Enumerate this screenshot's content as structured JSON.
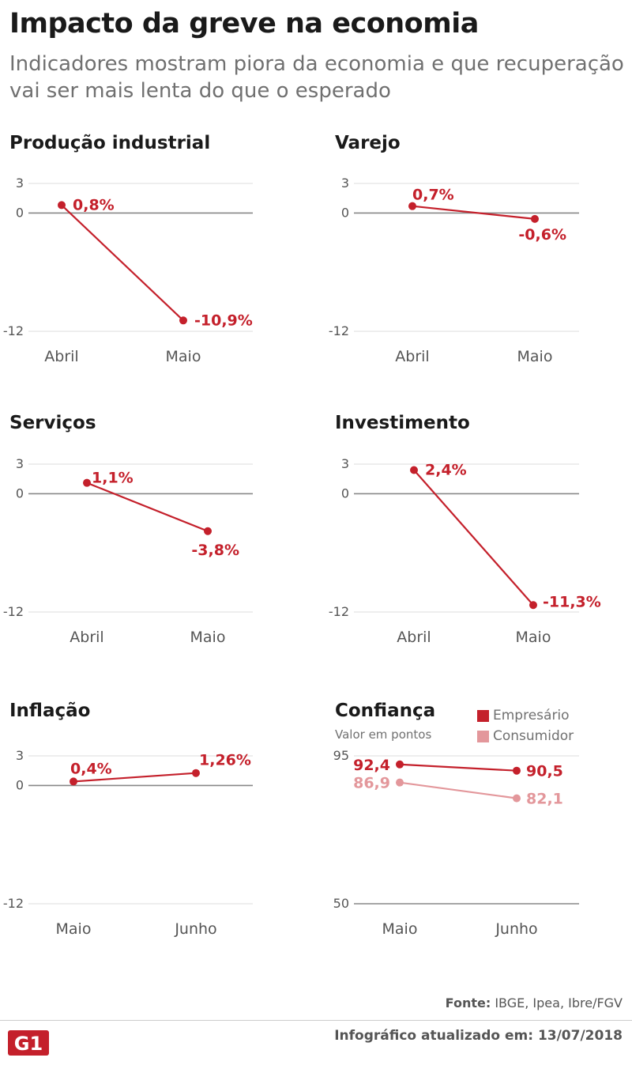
{
  "title": "Impacto da greve na economia",
  "subtitle": "Indicadores mostram piora da economia e que recuperação vai ser mais lenta do que o esperado",
  "colors": {
    "primary": "#c4202b",
    "secondary": "#e3979b",
    "axis": "#888888",
    "grid": "#dddddd"
  },
  "legend": {
    "empresario": "Empresário",
    "consumidor": "Consumidor"
  },
  "chart_data": [
    {
      "id": "producao",
      "type": "line",
      "title": "Produção industrial",
      "categories": [
        "Abril",
        "Maio"
      ],
      "series": [
        {
          "name": "Produção industrial",
          "values": [
            0.8,
            -10.9
          ],
          "labels": [
            "0,8%",
            "-10,9%"
          ]
        }
      ],
      "ylim": [
        -12,
        3
      ],
      "yticks": [
        3,
        0,
        -12
      ],
      "ytick_labels": [
        "3",
        "0",
        "-12"
      ]
    },
    {
      "id": "varejo",
      "type": "line",
      "title": "Varejo",
      "categories": [
        "Abril",
        "Maio"
      ],
      "series": [
        {
          "name": "Varejo",
          "values": [
            0.7,
            -0.6
          ],
          "labels": [
            "0,7%",
            "-0,6%"
          ]
        }
      ],
      "ylim": [
        -12,
        3
      ],
      "yticks": [
        3,
        0,
        -12
      ],
      "ytick_labels": [
        "3",
        "0",
        "-12"
      ]
    },
    {
      "id": "servicos",
      "type": "line",
      "title": "Serviços",
      "categories": [
        "Abril",
        "Maio"
      ],
      "series": [
        {
          "name": "Serviços",
          "values": [
            1.1,
            -3.8
          ],
          "labels": [
            "1,1%",
            "-3,8%"
          ]
        }
      ],
      "ylim": [
        -12,
        3
      ],
      "yticks": [
        3,
        0,
        -12
      ],
      "ytick_labels": [
        "3",
        "0",
        "-12"
      ]
    },
    {
      "id": "investimento",
      "type": "line",
      "title": "Investimento",
      "categories": [
        "Abril",
        "Maio"
      ],
      "series": [
        {
          "name": "Investimento",
          "values": [
            2.4,
            -11.3
          ],
          "labels": [
            "2,4%",
            "-11,3%"
          ]
        }
      ],
      "ylim": [
        -12,
        3
      ],
      "yticks": [
        3,
        0,
        -12
      ],
      "ytick_labels": [
        "3",
        "0",
        "-12"
      ]
    },
    {
      "id": "inflacao",
      "type": "line",
      "title": "Inflação",
      "categories": [
        "Maio",
        "Junho"
      ],
      "series": [
        {
          "name": "Inflação",
          "values": [
            0.4,
            1.26
          ],
          "labels": [
            "0,4%",
            "1,26%"
          ]
        }
      ],
      "ylim": [
        -12,
        3
      ],
      "yticks": [
        3,
        0,
        -12
      ],
      "ytick_labels": [
        "3",
        "0",
        "-12"
      ]
    },
    {
      "id": "confianca",
      "type": "line",
      "title": "Confiança",
      "subtitle": "Valor em pontos",
      "categories": [
        "Maio",
        "Junho"
      ],
      "series": [
        {
          "name": "Empresário",
          "values": [
            92.4,
            90.5
          ],
          "labels": [
            "92,4",
            "90,5"
          ]
        },
        {
          "name": "Consumidor",
          "values": [
            86.9,
            82.1
          ],
          "labels": [
            "86,9",
            "82,1"
          ]
        }
      ],
      "ylim": [
        50,
        95
      ],
      "yticks": [
        95,
        50
      ],
      "ytick_labels": [
        "95",
        "50"
      ]
    }
  ],
  "footer": {
    "source_label": "Fonte:",
    "source_text": "IBGE, Ipea, Ibre/FGV",
    "logo_text": "G1",
    "updated": "Infográfico atualizado em: 13/07/2018"
  }
}
